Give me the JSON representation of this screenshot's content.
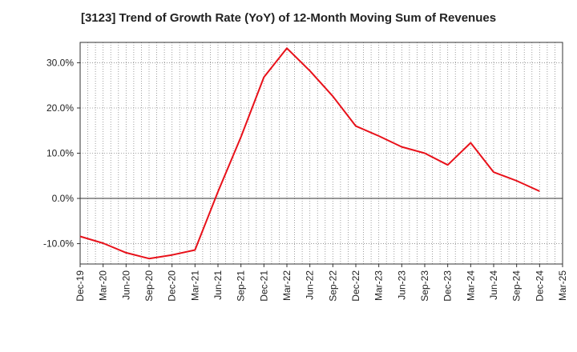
{
  "chart_data": {
    "type": "line",
    "title": "[3123]  Trend of Growth Rate (YoY) of 12-Month Moving Sum of Revenues",
    "xlabel": "",
    "ylabel": "",
    "x_ticks": [
      "Dec-19",
      "Mar-20",
      "Jun-20",
      "Sep-20",
      "Dec-20",
      "Mar-21",
      "Jun-21",
      "Sep-21",
      "Dec-21",
      "Mar-22",
      "Jun-22",
      "Sep-22",
      "Dec-22",
      "Mar-23",
      "Jun-23",
      "Sep-23",
      "Dec-23",
      "Mar-24",
      "Jun-24",
      "Sep-24",
      "Dec-24",
      "Mar-25"
    ],
    "y_ticks": [
      "-10.0%",
      "0.0%",
      "10.0%",
      "20.0%",
      "30.0%"
    ],
    "y_tick_values": [
      -10,
      0,
      10,
      20,
      30
    ],
    "ylim": [
      -14.5,
      34.5
    ],
    "grid": true,
    "series": [
      {
        "color": "#e8111a",
        "x": [
          "Dec-19",
          "Mar-20",
          "Jun-20",
          "Sep-20",
          "Dec-20",
          "Mar-21",
          "Jun-21",
          "Sep-21",
          "Dec-21",
          "Mar-22",
          "Jun-22",
          "Sep-22",
          "Dec-22",
          "Mar-23",
          "Jun-23",
          "Sep-23",
          "Dec-23",
          "Mar-24",
          "Jun-24",
          "Sep-24",
          "Dec-24"
        ],
        "values": [
          -8.4,
          -9.9,
          -12.0,
          -13.3,
          -12.5,
          -11.4,
          1.5,
          13.6,
          26.8,
          33.2,
          28.2,
          22.6,
          16.0,
          13.8,
          11.4,
          10.0,
          7.4,
          12.3,
          5.8,
          3.9,
          1.6
        ]
      }
    ]
  }
}
